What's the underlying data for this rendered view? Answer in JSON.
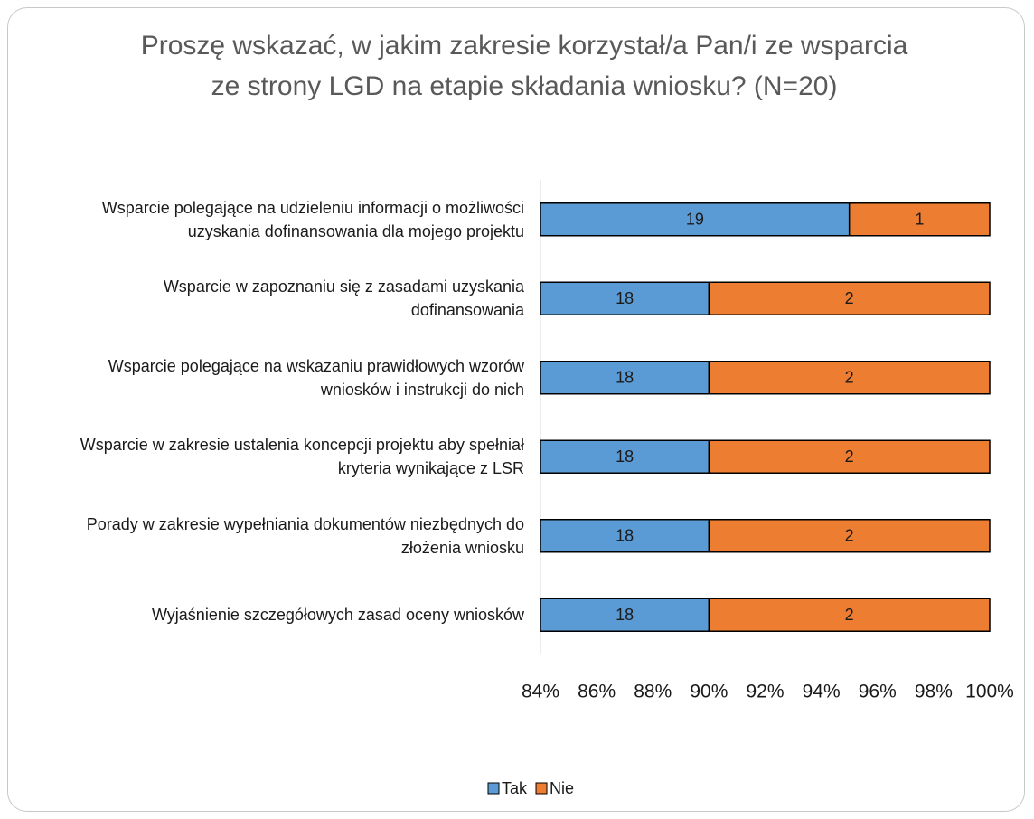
{
  "chart_data": {
    "type": "bar",
    "orientation": "horizontal",
    "stacking": "percent",
    "title": "Proszę wskazać, w jakim zakresie korzystał/a Pan/i ze wsparcia ze strony LGD na etapie składania wniosku? (N=20)",
    "categories": [
      "Wsparcie polegające na udzieleniu informacji o możliwości uzyskania dofinansowania dla mojego projektu",
      "Wsparcie w zapoznaniu się z zasadami uzyskania dofinansowania",
      "Wsparcie polegające na wskazaniu prawidłowych wzorów wniosków i instrukcji do nich",
      "Wsparcie w zakresie ustalenia koncepcji projektu aby spełniał kryteria wynikające z LSR",
      "Porady w zakresie wypełniania dokumentów niezbędnych do złożenia wniosku",
      "Wyjaśnienie szczegółowych zasad oceny wniosków"
    ],
    "series": [
      {
        "name": "Tak",
        "color": "#5b9bd5",
        "values": [
          19,
          18,
          18,
          18,
          18,
          18
        ]
      },
      {
        "name": "Nie",
        "color": "#ed7d31",
        "values": [
          1,
          2,
          2,
          2,
          2,
          2
        ]
      }
    ],
    "xlim": [
      84,
      100
    ],
    "xticks": [
      {
        "value": 84,
        "label": "84%"
      },
      {
        "value": 86,
        "label": "86%"
      },
      {
        "value": 88,
        "label": "88%"
      },
      {
        "value": 90,
        "label": "90%"
      },
      {
        "value": 92,
        "label": "92%"
      },
      {
        "value": 94,
        "label": "94%"
      },
      {
        "value": 96,
        "label": "96%"
      },
      {
        "value": 98,
        "label": "98%"
      },
      {
        "value": 100,
        "label": "100%"
      }
    ],
    "grid": false,
    "legend": "bottom"
  }
}
